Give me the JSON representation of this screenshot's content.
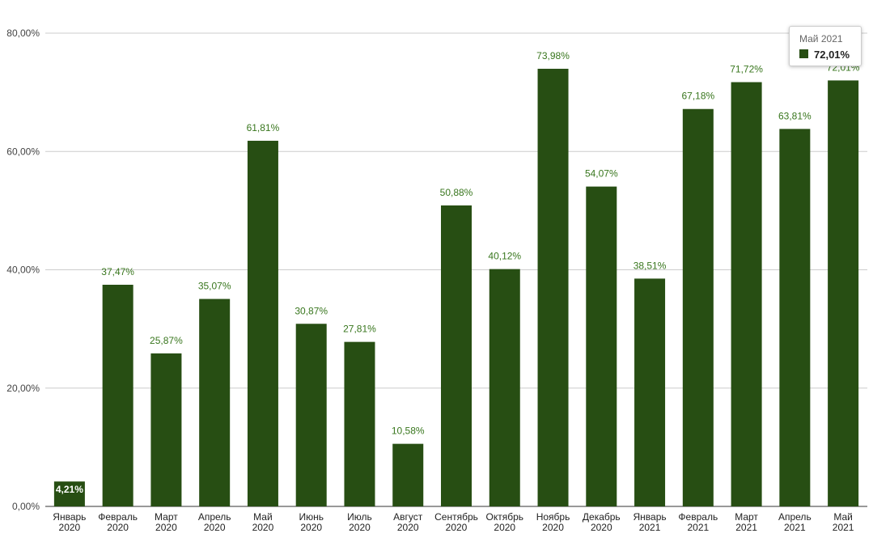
{
  "chart_data": {
    "type": "bar",
    "categories": [
      [
        "Январь",
        "2020"
      ],
      [
        "Февраль",
        "2020"
      ],
      [
        "Март",
        "2020"
      ],
      [
        "Апрель",
        "2020"
      ],
      [
        "Май",
        "2020"
      ],
      [
        "Июнь",
        "2020"
      ],
      [
        "Июль",
        "2020"
      ],
      [
        "Август",
        "2020"
      ],
      [
        "Сентябрь",
        "2020"
      ],
      [
        "Октябрь",
        "2020"
      ],
      [
        "Ноябрь",
        "2020"
      ],
      [
        "Декабрь",
        "2020"
      ],
      [
        "Январь",
        "2021"
      ],
      [
        "Февраль",
        "2021"
      ],
      [
        "Март",
        "2021"
      ],
      [
        "Апрель",
        "2021"
      ],
      [
        "Май",
        "2021"
      ]
    ],
    "values": [
      4.21,
      37.47,
      25.87,
      35.07,
      61.81,
      30.87,
      27.81,
      10.58,
      50.88,
      40.12,
      73.98,
      54.07,
      38.51,
      67.18,
      71.72,
      63.81,
      72.01
    ],
    "data_labels": [
      "4,21%",
      "37,47%",
      "25,87%",
      "35,07%",
      "61,81%",
      "30,87%",
      "27,81%",
      "10,58%",
      "50,88%",
      "40,12%",
      "73,98%",
      "54,07%",
      "38,51%",
      "67,18%",
      "71,72%",
      "63,81%",
      "72,01%"
    ],
    "yticks": [
      0,
      20,
      40,
      60,
      80
    ],
    "ytick_labels": [
      "0,00%",
      "20,00%",
      "40,00%",
      "60,00%",
      "80,00%"
    ],
    "ylim": [
      0,
      80
    ],
    "grid": true,
    "bar_color": "#274e13",
    "label_color": "#38761d",
    "title": "",
    "xlabel": "",
    "ylabel": ""
  },
  "tooltip": {
    "title": "Май 2021",
    "value": "72,01%",
    "color": "#274e13"
  }
}
